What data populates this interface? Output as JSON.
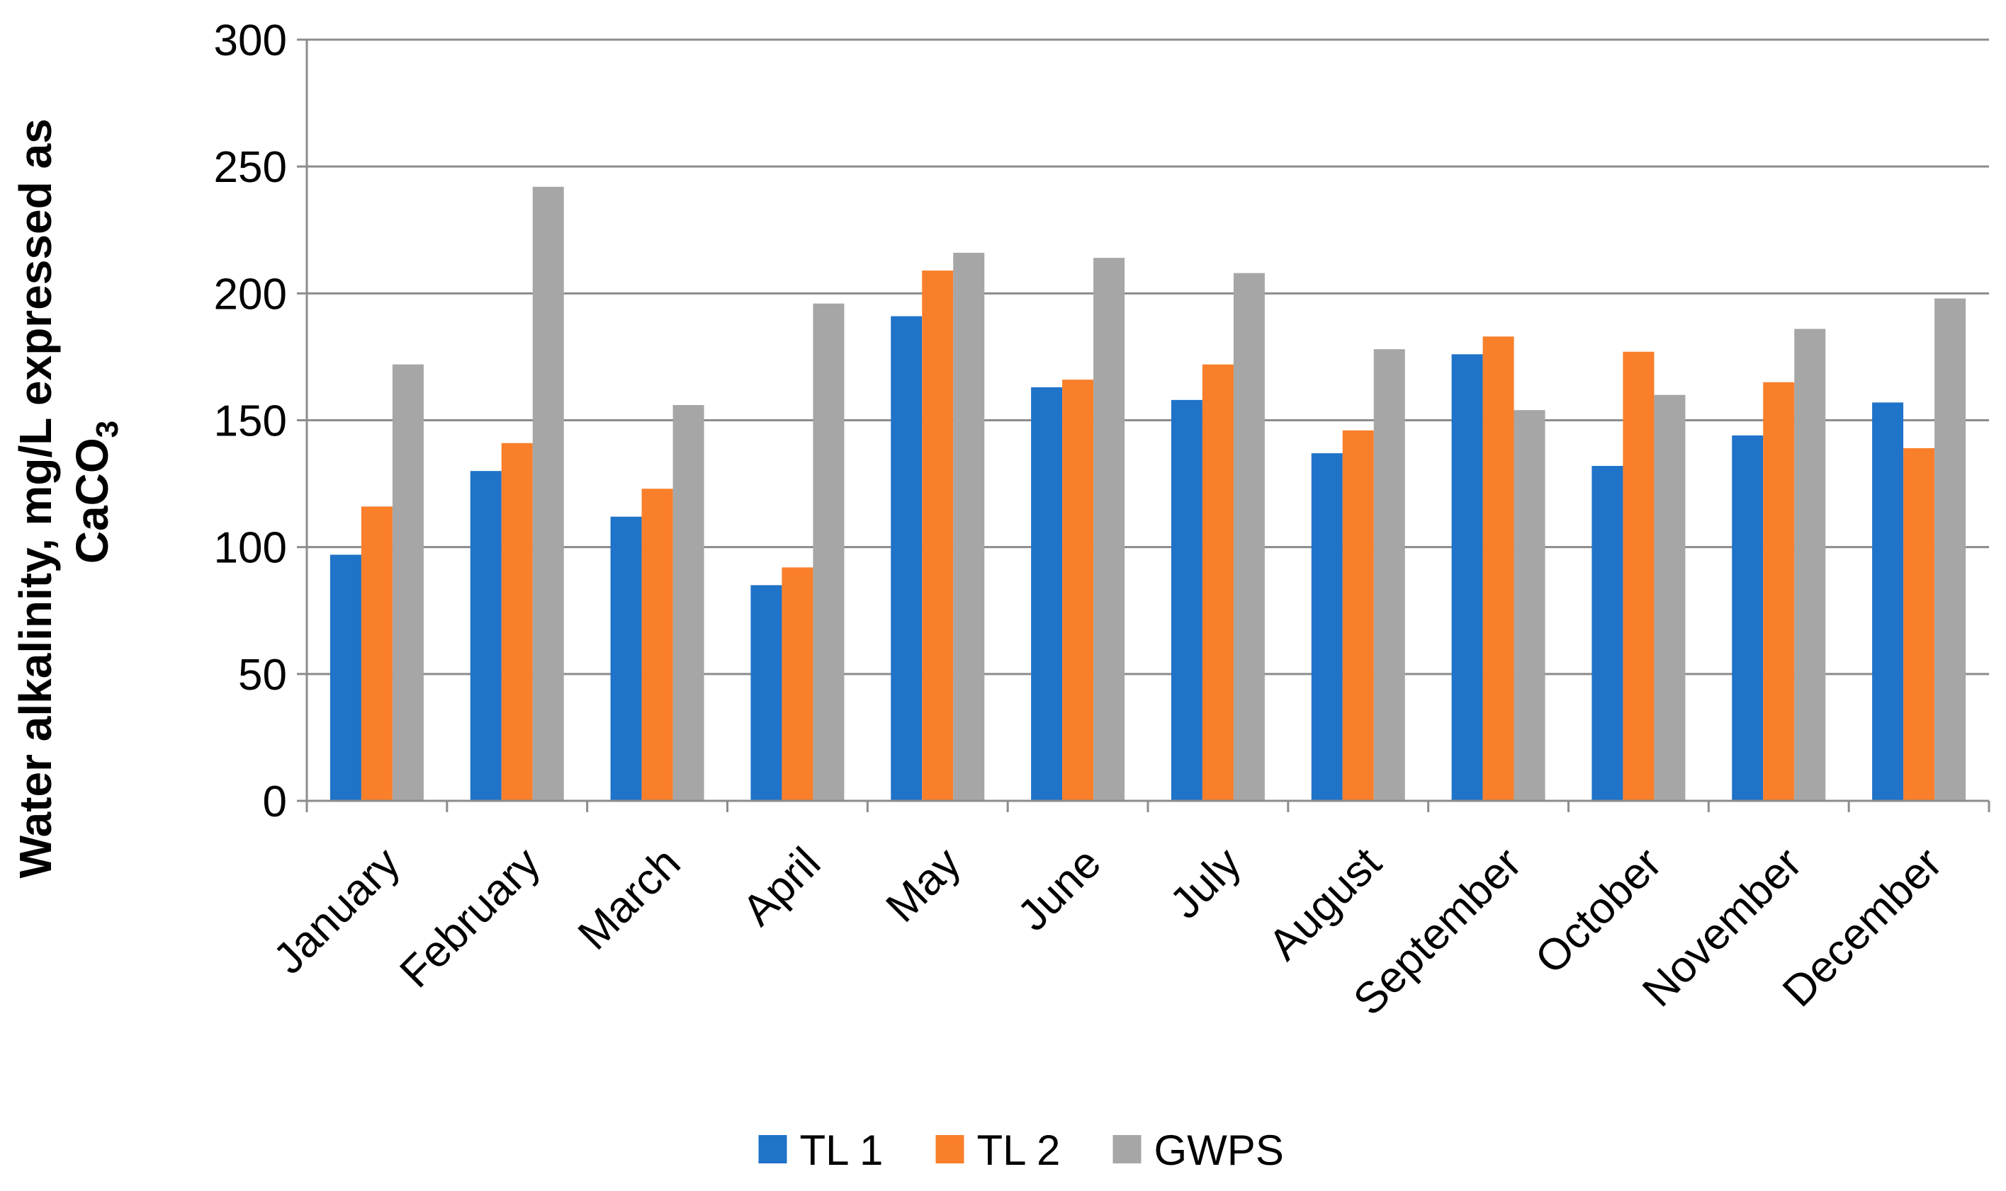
{
  "chart_data": {
    "type": "bar",
    "title": "",
    "xlabel": "",
    "ylabel_line1": "Water alkalinity, mg/L expressed as",
    "ylabel_line2_main": "CaCO",
    "ylabel_line2_sub": "3",
    "ylim": [
      0,
      300
    ],
    "yticks": [
      0,
      50,
      100,
      150,
      200,
      250,
      300
    ],
    "grid": true,
    "legend_position": "bottom",
    "categories": [
      "January",
      "February",
      "March",
      "April",
      "May",
      "June",
      "July",
      "August",
      "September",
      "October",
      "November",
      "December"
    ],
    "series": [
      {
        "name": "TL 1",
        "color": "#1f73c8",
        "values": [
          97,
          130,
          112,
          85,
          191,
          163,
          158,
          137,
          176,
          132,
          144,
          157
        ]
      },
      {
        "name": "TL 2",
        "color": "#f97f2a",
        "values": [
          116,
          141,
          123,
          92,
          209,
          166,
          172,
          146,
          183,
          177,
          165,
          139
        ]
      },
      {
        "name": "GWPS",
        "color": "#a6a6a6",
        "values": [
          172,
          242,
          156,
          196,
          216,
          214,
          208,
          178,
          154,
          160,
          186,
          198
        ]
      }
    ]
  }
}
